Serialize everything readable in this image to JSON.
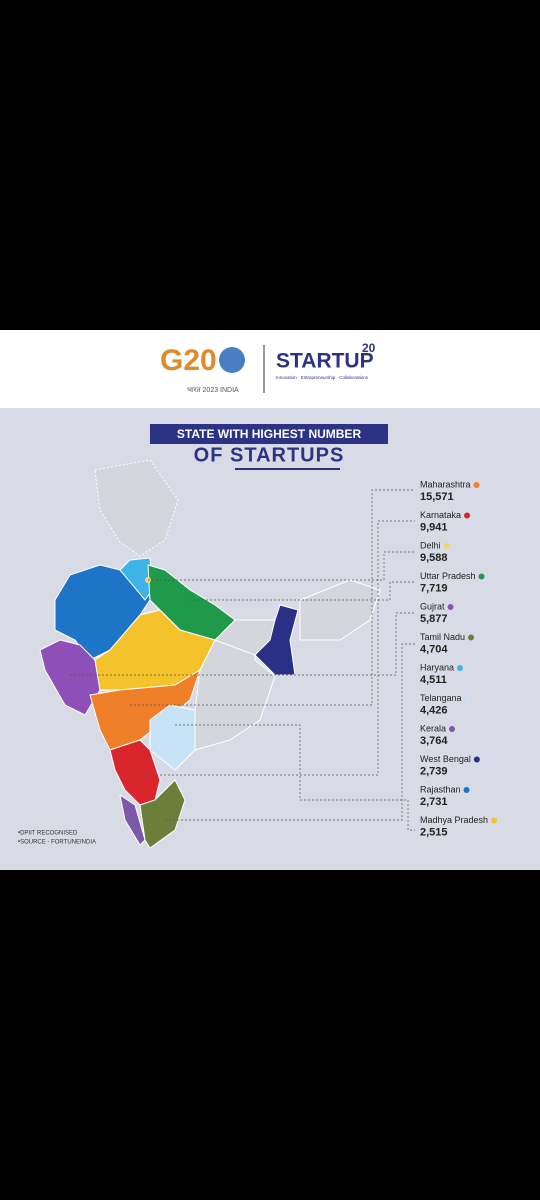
{
  "header": {
    "g20": "G20",
    "g20_sub": "भारत 2023 INDIA",
    "startup": "STARTUP",
    "startup_sup": "20",
    "tagline": "Innovation · Entrepreneurship · Collaborations"
  },
  "title": {
    "line1": "STATE WITH HIGHEST NUMBER",
    "line2": "OF STARTUPS"
  },
  "states": [
    {
      "name": "Maharashtra",
      "value": "15,571",
      "color": "#f07f2a"
    },
    {
      "name": "Karnataka",
      "value": "9,941",
      "color": "#d8262c"
    },
    {
      "name": "Delhi",
      "value": "9,588",
      "color": "#f3d36b"
    },
    {
      "name": "Uttar Pradesh",
      "value": "7,719",
      "color": "#1f9a4a"
    },
    {
      "name": "Gujrat",
      "value": "5,877",
      "color": "#8e4fb8"
    },
    {
      "name": "Tamil Nadu",
      "value": "4,704",
      "color": "#6b7f3a"
    },
    {
      "name": "Haryana",
      "value": "4,511",
      "color": "#3fb3e8"
    },
    {
      "name": "Telangana",
      "value": "4,426",
      "color": "#c7e3f5"
    },
    {
      "name": "Kerala",
      "value": "3,764",
      "color": "#7a5aa8"
    },
    {
      "name": "West Bengal",
      "value": "2,739",
      "color": "#2b2f86"
    },
    {
      "name": "Rajasthan",
      "value": "2,731",
      "color": "#1e74c6"
    },
    {
      "name": "Madhya Pradesh",
      "value": "2,515",
      "color": "#f4c22b"
    }
  ],
  "notes": [
    "•DPIIT RECOGNISED",
    "•SOURCE - FORTUNEINDIA"
  ]
}
